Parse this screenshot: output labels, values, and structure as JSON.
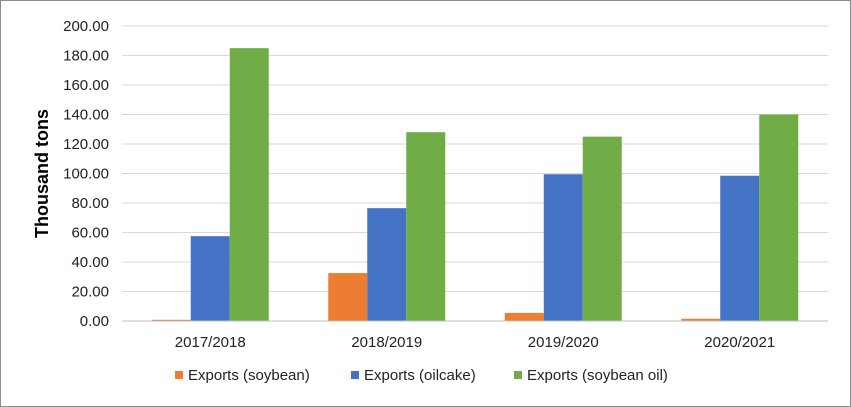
{
  "chart_data": {
    "type": "bar",
    "ylabel": "Thousand tons",
    "xlabel": "",
    "categories": [
      "2017/2018",
      "2018/2019",
      "2019/2020",
      "2020/2021"
    ],
    "ylim": [
      0,
      200
    ],
    "ytick_step": 20,
    "ytick_labels": [
      "0.00",
      "20.00",
      "40.00",
      "60.00",
      "80.00",
      "100.00",
      "120.00",
      "140.00",
      "160.00",
      "180.00",
      "200.00"
    ],
    "grid": true,
    "legend_position": "bottom",
    "series": [
      {
        "name": "Exports (soybean)",
        "color": "#ed7d31",
        "values": [
          0.8,
          32.5,
          5.5,
          1.5
        ]
      },
      {
        "name": "Exports (oilcake)",
        "color": "#4472c4",
        "values": [
          57.5,
          76.5,
          99.5,
          98.5
        ]
      },
      {
        "name": "Exports (soybean oil)",
        "color": "#70ad47",
        "values": [
          185,
          128,
          125,
          140
        ]
      }
    ]
  }
}
